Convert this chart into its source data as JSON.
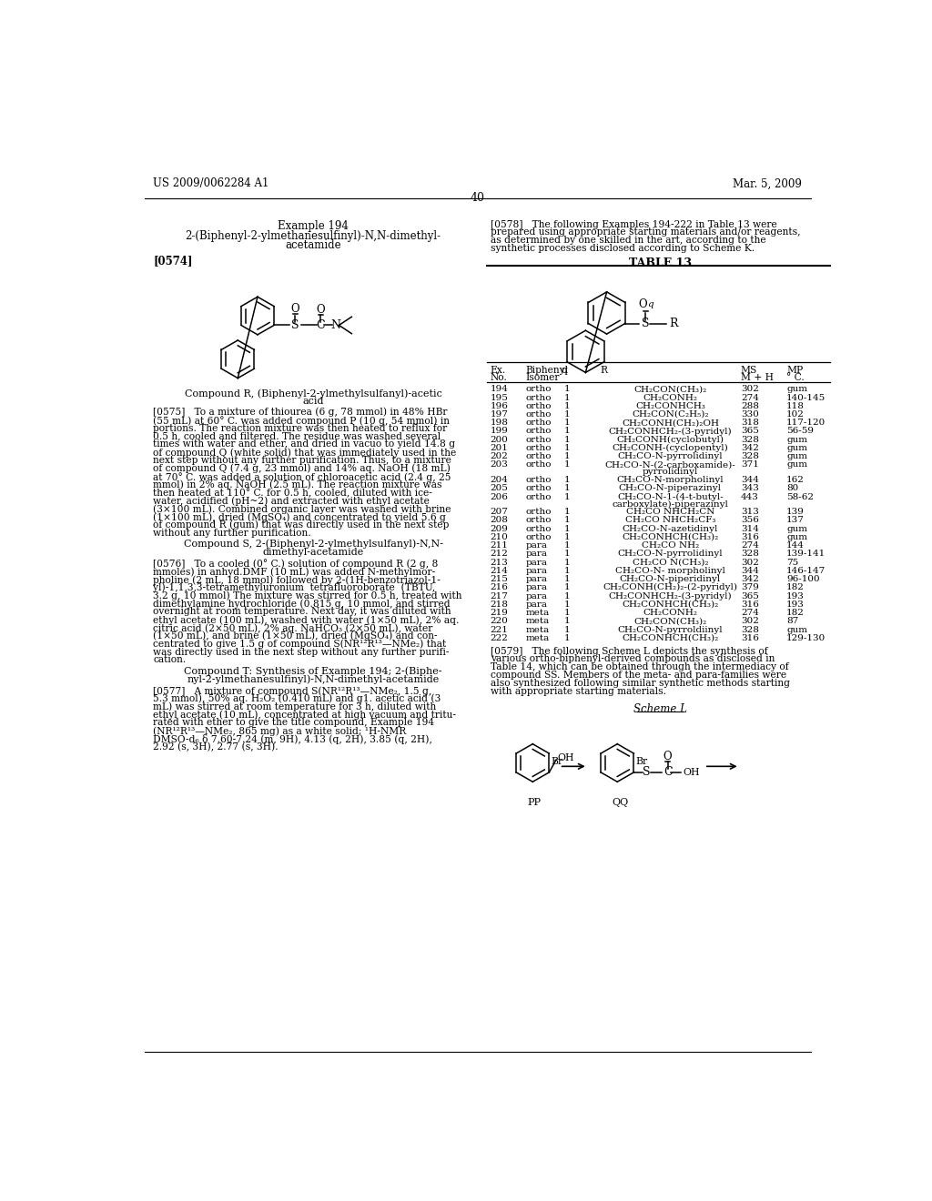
{
  "page_header_left": "US 2009/0062284 A1",
  "page_header_right": "Mar. 5, 2009",
  "page_number": "40",
  "bg_color": "#ffffff",
  "example_title": "Example 194",
  "example_subtitle1": "2-(Biphenyl-2-ylmethanesulfinyl)-N,N-dimethyl-",
  "example_subtitle2": "acetamide",
  "para_0574_tag": "[0574]",
  "compound_r_label1": "Compound R, (Biphenyl-2-ylmethylsulfanyl)-acetic",
  "compound_r_label2": "acid",
  "para_0575_lines": [
    "[0575]   To a mixture of thiourea (6 g, 78 mmol) in 48% HBr",
    "(55 mL) at 60° C. was added compound P (10 g, 54 mmol) in",
    "portions. The reaction mixture was then heated to reflux for",
    "0.5 h, cooled and filtered. The residue was washed several",
    "times with water and ether, and dried in vacuo to yield 14.8 g",
    "of compound Q (white solid) that was immediately used in the",
    "next step without any further purification. Thus, to a mixture",
    "of compound Q (7.4 g, 23 mmol) and 14% aq. NaOH (18 mL)",
    "at 70° C. was added a solution of chloroacetic acid (2.4 g, 25",
    "mmol) in 2% aq. NaOH (2.5 mL). The reaction mixture was",
    "then heated at 110° C. for 0.5 h, cooled, diluted with ice-",
    "water, acidified (pH~2) and extracted with ethyl acetate",
    "(3×100 mL). Combined organic layer was washed with brine",
    "(1×100 mL), dried (MgSO₄) and concentrated to yield 5.6 g",
    "of compound R (gum) that was directly used in the next step",
    "without any further purification."
  ],
  "compound_s_label1": "Compound S, 2-(Biphenyl-2-ylmethylsulfanyl)-N,N-",
  "compound_s_label2": "dimethyl-acetamide",
  "para_0576_lines": [
    "[0576]   To a cooled (0° C.) solution of compound R (2 g, 8",
    "mmoles) in anhyd.DMF (10 mL) was added N-methylmor-",
    "pholine (2 mL, 18 mmol) followed by 2-(1H-benzotriazol-1-",
    "yl)-1,1,3,3-tetramethyluronium  tetrafluoroborate  (TBTU,",
    "3.2 g, 10 mmol) The mixture was stirred for 0.5 h, treated with",
    "dimethylamine hydrochloride (0.815 g, 10 mmol, and stirred",
    "overnight at room temperature. Next day, it was diluted with",
    "ethyl acetate (100 mL), washed with water (1×50 mL), 2% aq.",
    "citric acid (2×50 mL), 2% aq. NaHCO₃ (2×50 mL), water",
    "(1×50 mL), and brine (1×50 mL), dried (MgSO₄) and con-",
    "centrated to give 1.5 g of compound S(NR¹²R¹³—NMe₂) that",
    "was directly used in the next step without any further purifi-",
    "cation."
  ],
  "compound_t_label1": "Compound T: Synthesis of Example 194; 2-(Biphe-",
  "compound_t_label2": "nyl-2-ylmethanesulfinyl)-N,N-dimethyl-acetamide",
  "para_0577_lines": [
    "[0577]   A mixture of compound S(NR¹²R¹³—NMe₂, 1.5 g,",
    "5.3 mmol), 50% aq. H₂O₂ (0.410 mL) and g1. acetic acid (3",
    "mL) was stirred at room temperature for 3 h, diluted with",
    "ethyl acetate (10 mL), concentrated at high vacuum and tritu-",
    "rated with ether to give the title compound, Example 194",
    "(NR¹²R¹³—NMe₂, 865 mg) as a white solid; ¹H-NMR",
    "DMSO-d₆ δ 7.60-7.24 (m, 9H), 4.13 (q, 2H), 3.85 (q, 2H),",
    "2.92 (s, 3H), 2.77 (s, 3H)."
  ],
  "para_0578_lines": [
    "[0578]   The following Examples 194-222 in Table 13 were",
    "prepared using appropriate starting materials and/or reagents,",
    "as determined by one skilled in the art, according to the",
    "synthetic processes disclosed according to Scheme K."
  ],
  "table_title": "TABLE 13",
  "table_data": [
    [
      "194",
      "ortho",
      "1",
      "CH₂CON(CH₃)₂",
      "302",
      "gum"
    ],
    [
      "195",
      "ortho",
      "1",
      "CH₂CONH₂",
      "274",
      "140-145"
    ],
    [
      "196",
      "ortho",
      "1",
      "CH₂CONHCH₃",
      "288",
      "118"
    ],
    [
      "197",
      "ortho",
      "1",
      "CH₂CON(C₂H₅)₂",
      "330",
      "102"
    ],
    [
      "198",
      "ortho",
      "1",
      "CH₂CONH(CH₂)₂OH",
      "318",
      "117-120"
    ],
    [
      "199",
      "ortho",
      "1",
      "CH₂CONHCH₂-(3-pyridyl)",
      "365",
      "56-59"
    ],
    [
      "200",
      "ortho",
      "1",
      "CH₂CONH(cyclobutyl)",
      "328",
      "gum"
    ],
    [
      "201",
      "ortho",
      "1",
      "CH₂CONH-(cyclopentyl)",
      "342",
      "gum"
    ],
    [
      "202",
      "ortho",
      "1",
      "CH₂CO-N-pyrrolidinyl",
      "328",
      "gum"
    ],
    [
      "203",
      "ortho",
      "1",
      "CH₂CO-N-(2-carboxamide)-",
      "371",
      "gum",
      "pyrrolidinyl"
    ],
    [
      "204",
      "ortho",
      "1",
      "CH₂CO-N-morpholinyl",
      "344",
      "162"
    ],
    [
      "205",
      "ortho",
      "1",
      "CH₂CO-N-piperazinyl",
      "343",
      "80"
    ],
    [
      "206",
      "ortho",
      "1",
      "CH₂CO-N-1-(4-t-butyl-",
      "443",
      "58-62",
      "carboxylate)-piperazinyl"
    ],
    [
      "207",
      "ortho",
      "1",
      "CH₂CO NHCH₂CN",
      "313",
      "139"
    ],
    [
      "208",
      "ortho",
      "1",
      "CH₂CO NHCH₂CF₃",
      "356",
      "137"
    ],
    [
      "209",
      "ortho",
      "1",
      "CH₂CO-N-azetidinyl",
      "314",
      "gum"
    ],
    [
      "210",
      "ortho",
      "1",
      "CH₂CONHCH(CH₃)₂",
      "316",
      "gum"
    ],
    [
      "211",
      "para",
      "1",
      "CH₂CO NH₂",
      "274",
      "144"
    ],
    [
      "212",
      "para",
      "1",
      "CH₂CO-N-pyrrolidinyl",
      "328",
      "139-141"
    ],
    [
      "213",
      "para",
      "1",
      "CH₂CO N(CH₃)₂",
      "302",
      "75"
    ],
    [
      "214",
      "para",
      "1",
      "CH₂CO-N- morpholinyl",
      "344",
      "146-147"
    ],
    [
      "215",
      "para",
      "1",
      "CH₂CO-N-piperidinyl",
      "342",
      "96-100"
    ],
    [
      "216",
      "para",
      "1",
      "CH₂CONH(CH₂)₂-(2-pyridyl)",
      "379",
      "182"
    ],
    [
      "217",
      "para",
      "1",
      "CH₂CONHCH₂-(3-pyridyl)",
      "365",
      "193"
    ],
    [
      "218",
      "para",
      "1",
      "CH₂CONHCH(CH₃)₂",
      "316",
      "193"
    ],
    [
      "219",
      "meta",
      "1",
      "CH₂CONH₂",
      "274",
      "182"
    ],
    [
      "220",
      "meta",
      "1",
      "CH₂CON(CH₃)₂",
      "302",
      "87"
    ],
    [
      "221",
      "meta",
      "1",
      "CH₂CO-N-pyrroldiinyl",
      "328",
      "gum"
    ],
    [
      "222",
      "meta",
      "1",
      "CH₂CONHCH(CH₃)₂",
      "316",
      "129-130"
    ]
  ],
  "para_0579_lines": [
    "[0579]   The following Scheme L depicts the synthesis of",
    "various ortho-biphenyl-derived compounds as disclosed in",
    "Table 14, which can be obtained through the intermediacy of",
    "compound SS. Members of the meta- and para-families were",
    "also synthesized following similar synthetic methods starting",
    "with appropriate starting materials."
  ],
  "scheme_l_title": "Scheme L",
  "scheme_pp_label": "PP",
  "scheme_qq_label": "QQ"
}
